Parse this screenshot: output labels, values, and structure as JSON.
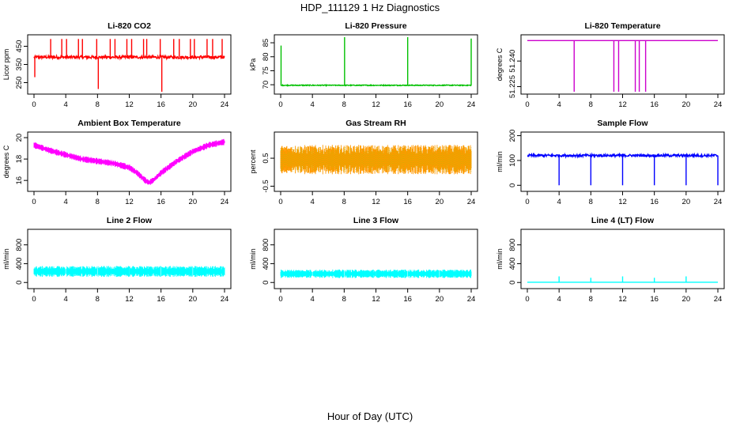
{
  "figure": {
    "title": "HDP_111129  1 Hz Diagnostics",
    "xlabel": "Hour of Day (UTC)"
  },
  "chart_data": [
    {
      "type": "line",
      "title": "Li-820 CO2",
      "ylabel": "Licor ppm",
      "color": "#ff0000",
      "xlim": [
        0,
        24
      ],
      "ylim": [
        200,
        500
      ],
      "xticks": [
        0,
        4,
        8,
        12,
        16,
        20,
        24
      ],
      "yticks": [
        250,
        350,
        450
      ],
      "baseline": 390,
      "noise": 8,
      "spikes": [
        [
          2.1,
          490
        ],
        [
          3.5,
          490
        ],
        [
          4.1,
          490
        ],
        [
          5.6,
          490
        ],
        [
          6.1,
          490
        ],
        [
          7.9,
          490
        ],
        [
          8.1,
          215
        ],
        [
          9.6,
          490
        ],
        [
          10.2,
          490
        ],
        [
          11.7,
          490
        ],
        [
          12.3,
          490
        ],
        [
          13.8,
          490
        ],
        [
          14.2,
          490
        ],
        [
          15.9,
          490
        ],
        [
          16.1,
          200
        ],
        [
          17.6,
          490
        ],
        [
          18.3,
          490
        ],
        [
          19.7,
          490
        ],
        [
          20.2,
          490
        ],
        [
          21.8,
          490
        ],
        [
          22.5,
          490
        ],
        [
          23.7,
          490
        ]
      ],
      "dips": [
        [
          0.1,
          280
        ]
      ]
    },
    {
      "type": "line",
      "title": "Li-820 Pressure",
      "ylabel": "kPa",
      "color": "#00c000",
      "xlim": [
        0,
        24
      ],
      "ylim": [
        67.5,
        87
      ],
      "xticks": [
        0,
        4,
        8,
        12,
        16,
        20,
        24
      ],
      "yticks": [
        70,
        75,
        80,
        85
      ],
      "baseline": 69.8,
      "noise": 0.15,
      "spikes": [
        [
          0.05,
          84
        ],
        [
          8.05,
          87
        ],
        [
          16.0,
          87
        ],
        [
          24.0,
          86.5
        ]
      ]
    },
    {
      "type": "line",
      "title": "Li-820 Temperature",
      "ylabel": "degrees C",
      "color": "#cc00cc",
      "xlim": [
        0,
        24
      ],
      "ylim": [
        51.222,
        51.254
      ],
      "xticks": [
        0,
        4,
        8,
        12,
        16,
        20,
        24
      ],
      "yticks": [
        51.225,
        51.24
      ],
      "ytick_labels": [
        "51.225",
        "51.240"
      ],
      "baseline": 51.252,
      "noise": 0,
      "dips": [
        [
          5.9,
          51.222
        ],
        [
          10.9,
          51.222
        ],
        [
          11.5,
          51.222
        ],
        [
          13.6,
          51.222
        ],
        [
          14.1,
          51.222
        ],
        [
          14.9,
          51.222
        ]
      ]
    },
    {
      "type": "band",
      "title": "Ambient Box Temperature",
      "ylabel": "degrees C",
      "color": "#ff00ff",
      "xlim": [
        0,
        24
      ],
      "ylim": [
        15.2,
        20.3
      ],
      "xticks": [
        0,
        4,
        8,
        12,
        16,
        20,
        24
      ],
      "yticks": [
        16,
        18,
        20
      ],
      "x": [
        0,
        2,
        4,
        6,
        8,
        10,
        12,
        13,
        14,
        14.5,
        15,
        16,
        18,
        20,
        22,
        24
      ],
      "values": [
        19.3,
        18.8,
        18.4,
        18.0,
        17.8,
        17.6,
        17.2,
        16.7,
        16.0,
        15.8,
        16.0,
        16.7,
        17.8,
        18.7,
        19.3,
        19.6
      ],
      "band": 0.6
    },
    {
      "type": "band",
      "title": "Gas Stream RH",
      "ylabel": "percent",
      "color": "#ff9900",
      "overlay_color": "#bbbb00",
      "xlim": [
        0,
        24
      ],
      "ylim": [
        -0.6,
        1.35
      ],
      "xticks": [
        0,
        4,
        8,
        12,
        16,
        20,
        24
      ],
      "yticks": [
        -0.5,
        0.5
      ],
      "x": [
        0,
        6,
        12,
        18,
        24
      ],
      "values": [
        0.45,
        0.45,
        0.45,
        0.45,
        0.45
      ],
      "band": 1.05
    },
    {
      "type": "line",
      "title": "Sample Flow",
      "ylabel": "ml/min",
      "color": "#0000ff",
      "xlim": [
        0,
        24
      ],
      "ylim": [
        -15,
        205
      ],
      "xticks": [
        0,
        4,
        8,
        12,
        16,
        20,
        24
      ],
      "yticks": [
        0,
        100,
        200
      ],
      "baseline": 120,
      "noise": 5,
      "dips": [
        [
          4.0,
          0
        ],
        [
          8.0,
          0
        ],
        [
          12.0,
          0
        ],
        [
          16.0,
          0
        ],
        [
          20.0,
          0
        ],
        [
          24.0,
          0
        ]
      ]
    },
    {
      "type": "band",
      "title": "Line 2 Flow",
      "ylabel": "ml/min",
      "color": "#00ffff",
      "xlim": [
        0,
        24
      ],
      "ylim": [
        -80,
        1080
      ],
      "xticks": [
        0,
        4,
        8,
        12,
        16,
        20,
        24
      ],
      "yticks": [
        0,
        400,
        800
      ],
      "x": [
        0,
        24
      ],
      "values": [
        235,
        235
      ],
      "band": 230,
      "gaps": [
        4,
        8,
        12,
        16,
        20
      ]
    },
    {
      "type": "band",
      "title": "Line 3 Flow",
      "ylabel": "ml/min",
      "color": "#00ffff",
      "xlim": [
        0,
        24
      ],
      "ylim": [
        -80,
        1080
      ],
      "xticks": [
        0,
        4,
        8,
        12,
        16,
        20,
        24
      ],
      "yticks": [
        0,
        400,
        800
      ],
      "x": [
        0,
        24
      ],
      "values": [
        185,
        185
      ],
      "band": 180,
      "gaps": [
        4,
        8,
        12,
        16,
        20
      ]
    },
    {
      "type": "line",
      "title": "Line 4 (LT) Flow",
      "ylabel": "ml/min",
      "color": "#00ffff",
      "xlim": [
        0,
        24
      ],
      "ylim": [
        -80,
        1080
      ],
      "xticks": [
        0,
        4,
        8,
        12,
        16,
        20,
        24
      ],
      "yticks": [
        0,
        400,
        800
      ],
      "baseline": 5,
      "noise": 0,
      "spikes": [
        [
          4.0,
          130
        ],
        [
          8.0,
          100
        ],
        [
          12.0,
          130
        ],
        [
          16.0,
          100
        ],
        [
          20.0,
          130
        ]
      ]
    }
  ]
}
